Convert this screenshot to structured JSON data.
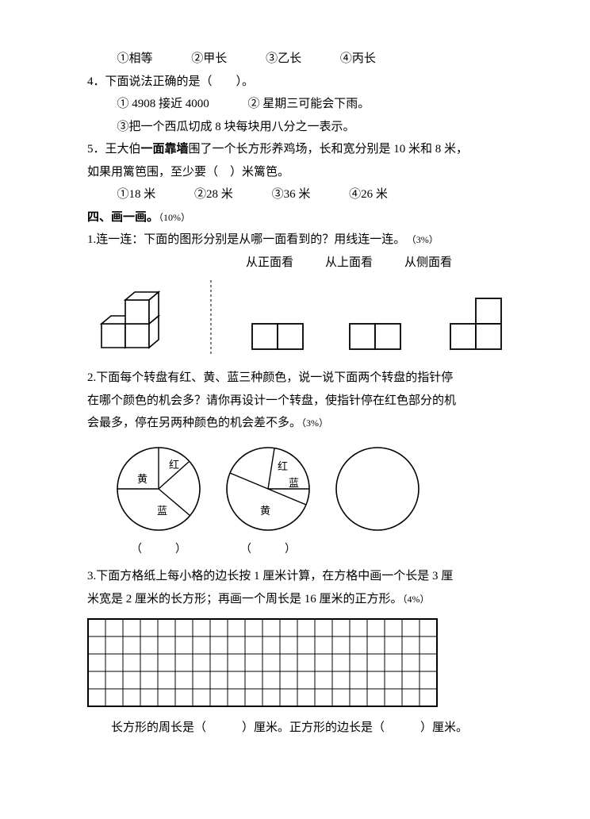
{
  "q3_options": {
    "o1": "①相等",
    "o2": "②甲长",
    "o3": "③乙长",
    "o4": "④丙长"
  },
  "q4": {
    "stem": "4．下面说法正确的是（　　）。",
    "o1": "① 4908 接近 4000",
    "o2": "② 星期三可能会下雨。",
    "o3": "③把一个西瓜切成 8 块每块用八分之一表示。"
  },
  "q5": {
    "stem_a": "5．王大伯",
    "stem_bold": "一面靠墙",
    "stem_b": "围了一个长方形养鸡场，长和宽分别是 10 米和 8 米，",
    "stem_c": "如果用篱笆围，至少要（　）米篱笆。",
    "o1": "①18 米",
    "o2": "②28 米",
    "o3": "③36 米",
    "o4": "④26 米"
  },
  "sec4": {
    "title": "四、画一画。",
    "pts": "（10%）"
  },
  "p1": {
    "stem": "1.连一连：下面的图形分别是从哪一面看到的？用线连一连。",
    "pts": "（3%）",
    "labels": {
      "front": "从正面看",
      "top": "从上面看",
      "side": "从侧面看"
    }
  },
  "p2": {
    "line1": "2.下面每个转盘有红、黄、蓝三种颜色，说一说下面两个转盘的指针停",
    "line2": "在哪个颜色的机会多？请你再设计一个转盘，使指针停在红色部分的机",
    "line3": "会最多，停在另两种颜色的机会差不多。",
    "pts": "（3%）",
    "colors": {
      "red": "红",
      "yellow": "黄",
      "blue": "蓝"
    },
    "blank": "（　　　）"
  },
  "p3": {
    "line1": "3.下面方格纸上每小格的边长按 1 厘米计算，在方格中画一个长是 3 厘",
    "line2": "米宽是 2 厘米的长方形；再画一个周长是 16 厘米的正方形。",
    "pts": "（4%）",
    "answer": "长方形的周长是（　　　）厘米。正方形的边长是（　　　）厘米。"
  },
  "style": {
    "stroke": "#000000",
    "bg": "#ffffff",
    "grid_cols": 20,
    "grid_rows": 5,
    "grid_cell": 22,
    "cube_unit": 32
  }
}
